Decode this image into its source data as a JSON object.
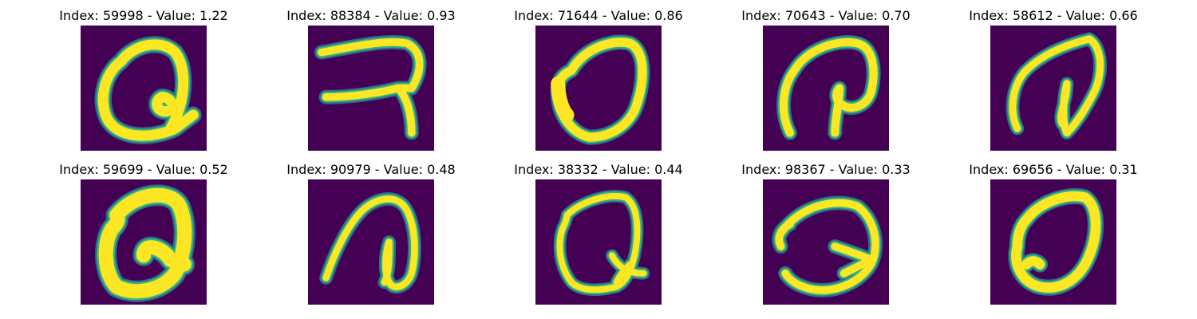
{
  "panels": [
    {
      "title": "Index: 59998 - Value: 1.22",
      "index": 59998,
      "value": 1.22
    },
    {
      "title": "Index: 88384 - Value: 0.93",
      "index": 88384,
      "value": 0.93
    },
    {
      "title": "Index: 71644 - Value: 0.86",
      "index": 71644,
      "value": 0.86
    },
    {
      "title": "Index: 70643 - Value: 0.70",
      "index": 70643,
      "value": 0.7
    },
    {
      "title": "Index: 58612 - Value: 0.66",
      "index": 58612,
      "value": 0.66
    },
    {
      "title": "Index: 59699 - Value: 0.52",
      "index": 59699,
      "value": 0.52
    },
    {
      "title": "Index: 90979 - Value: 0.48",
      "index": 90979,
      "value": 0.48
    },
    {
      "title": "Index: 38332 - Value: 0.44",
      "index": 38332,
      "value": 0.44
    },
    {
      "title": "Index: 98367 - Value: 0.33",
      "index": 98367,
      "value": 0.33
    },
    {
      "title": "Index: 69656 - Value: 0.31",
      "index": 69656,
      "value": 0.31
    }
  ],
  "colors": {
    "background": "#440154",
    "low": "#31688e",
    "mid": "#35b779",
    "high": "#fde725"
  }
}
